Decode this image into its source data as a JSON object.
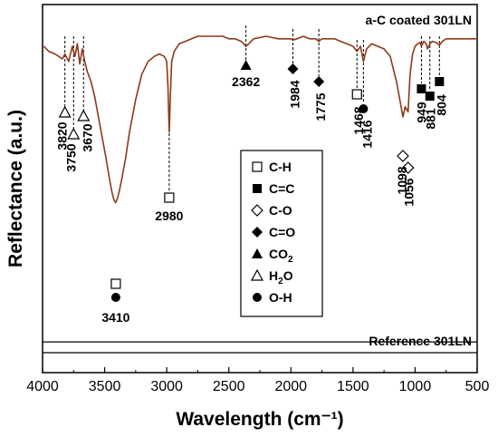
{
  "chart_data": {
    "type": "line",
    "title": "",
    "xlabel": "Wavelength (cm⁻¹)",
    "ylabel": "Reflectance (a.u.)",
    "xlim": [
      4000,
      500
    ],
    "x_reversed": true,
    "y_ticks_shown": false,
    "xticks": [
      4000,
      3500,
      3000,
      2500,
      2000,
      1500,
      1000,
      500
    ],
    "xtick_labels": [
      "4000",
      "3500",
      "3000",
      "2500",
      "2000",
      "1500",
      "1000",
      "500"
    ],
    "series": [
      {
        "name": "a-C coated 301LN",
        "color": "#8b3a1a",
        "x": [
          3990,
          3950,
          3900,
          3870,
          3840,
          3820,
          3790,
          3760,
          3740,
          3720,
          3700,
          3680,
          3660,
          3640,
          3610,
          3580,
          3550,
          3520,
          3490,
          3460,
          3440,
          3425,
          3410,
          3395,
          3380,
          3360,
          3330,
          3300,
          3250,
          3200,
          3150,
          3100,
          3060,
          3020,
          3000,
          2990,
          2980,
          2970,
          2960,
          2940,
          2900,
          2850,
          2800,
          2750,
          2700,
          2650,
          2600,
          2550,
          2500,
          2450,
          2400,
          2380,
          2362,
          2340,
          2300,
          2200,
          2100,
          2000,
          1984,
          1950,
          1900,
          1850,
          1800,
          1775,
          1750,
          1700,
          1650,
          1600,
          1550,
          1500,
          1468,
          1440,
          1416,
          1390,
          1350,
          1300,
          1250,
          1200,
          1180,
          1150,
          1120,
          1098,
          1080,
          1056,
          1040,
          1020,
          1000,
          980,
          960,
          949,
          930,
          910,
          900,
          881,
          860,
          830,
          804,
          780,
          750,
          700,
          650,
          600,
          550,
          500
        ],
        "y": [
          0.96,
          0.94,
          0.93,
          0.92,
          0.91,
          0.93,
          0.9,
          0.96,
          0.92,
          0.97,
          0.89,
          0.95,
          0.9,
          0.86,
          0.82,
          0.76,
          0.68,
          0.6,
          0.52,
          0.43,
          0.38,
          0.35,
          0.34,
          0.36,
          0.39,
          0.44,
          0.52,
          0.62,
          0.75,
          0.85,
          0.9,
          0.92,
          0.93,
          0.92,
          0.9,
          0.8,
          0.62,
          0.78,
          0.9,
          0.94,
          0.97,
          0.98,
          0.99,
          1.0,
          1.0,
          1.0,
          1.0,
          1.0,
          0.99,
          0.99,
          0.98,
          0.97,
          0.96,
          0.97,
          0.99,
          1.0,
          0.99,
          0.99,
          0.985,
          0.99,
          1.0,
          0.99,
          0.99,
          0.98,
          0.99,
          0.99,
          0.99,
          0.98,
          0.97,
          0.96,
          0.94,
          0.96,
          0.9,
          0.95,
          0.97,
          0.96,
          0.95,
          0.92,
          0.88,
          0.82,
          0.74,
          0.68,
          0.72,
          0.7,
          0.85,
          0.93,
          0.96,
          0.97,
          0.975,
          0.96,
          0.98,
          0.97,
          0.95,
          0.97,
          0.98,
          0.975,
          0.965,
          0.98,
          0.99,
          0.99,
          0.99,
          0.99,
          0.99,
          0.99
        ]
      },
      {
        "name": "Reference 301LN",
        "color": "#000000",
        "x": [
          4000,
          500
        ],
        "y": [
          0.045,
          0.045
        ]
      }
    ],
    "annotations": [
      {
        "label": "3820",
        "x": 3820,
        "marker": "open-triangle"
      },
      {
        "label": "3750",
        "x": 3750,
        "marker": "open-triangle"
      },
      {
        "label": "3670",
        "x": 3670,
        "marker": "open-triangle"
      },
      {
        "label": "3410",
        "x": 3410,
        "marker": "open-square+filled-circle"
      },
      {
        "label": "2980",
        "x": 2980,
        "marker": "open-square"
      },
      {
        "label": "2362",
        "x": 2362,
        "marker": "filled-triangle"
      },
      {
        "label": "1984",
        "x": 1984,
        "marker": "filled-diamond"
      },
      {
        "label": "1775",
        "x": 1775,
        "marker": "filled-diamond"
      },
      {
        "label": "1468",
        "x": 1468,
        "marker": "open-square"
      },
      {
        "label": "1416",
        "x": 1416,
        "marker": "filled-circle"
      },
      {
        "label": "1098",
        "x": 1098,
        "marker": "open-diamond"
      },
      {
        "label": "1056",
        "x": 1056,
        "marker": "open-diamond"
      },
      {
        "label": "949",
        "x": 949,
        "marker": "filled-square"
      },
      {
        "label": "881",
        "x": 881,
        "marker": "filled-square"
      },
      {
        "label": "804",
        "x": 804,
        "marker": "filled-square"
      }
    ],
    "legend": {
      "placement": "center",
      "entries": [
        {
          "symbol": "open-square",
          "label": "C-H"
        },
        {
          "symbol": "filled-square",
          "label": "C=C"
        },
        {
          "symbol": "open-diamond",
          "label": "C-O"
        },
        {
          "symbol": "filled-diamond",
          "label": "C=O"
        },
        {
          "symbol": "filled-triangle",
          "label": "CO",
          "subscript": "2"
        },
        {
          "symbol": "open-triangle",
          "label": "H",
          "subscript": "2",
          "suffix": "O"
        },
        {
          "symbol": "filled-circle",
          "label": "O-H"
        }
      ]
    }
  }
}
